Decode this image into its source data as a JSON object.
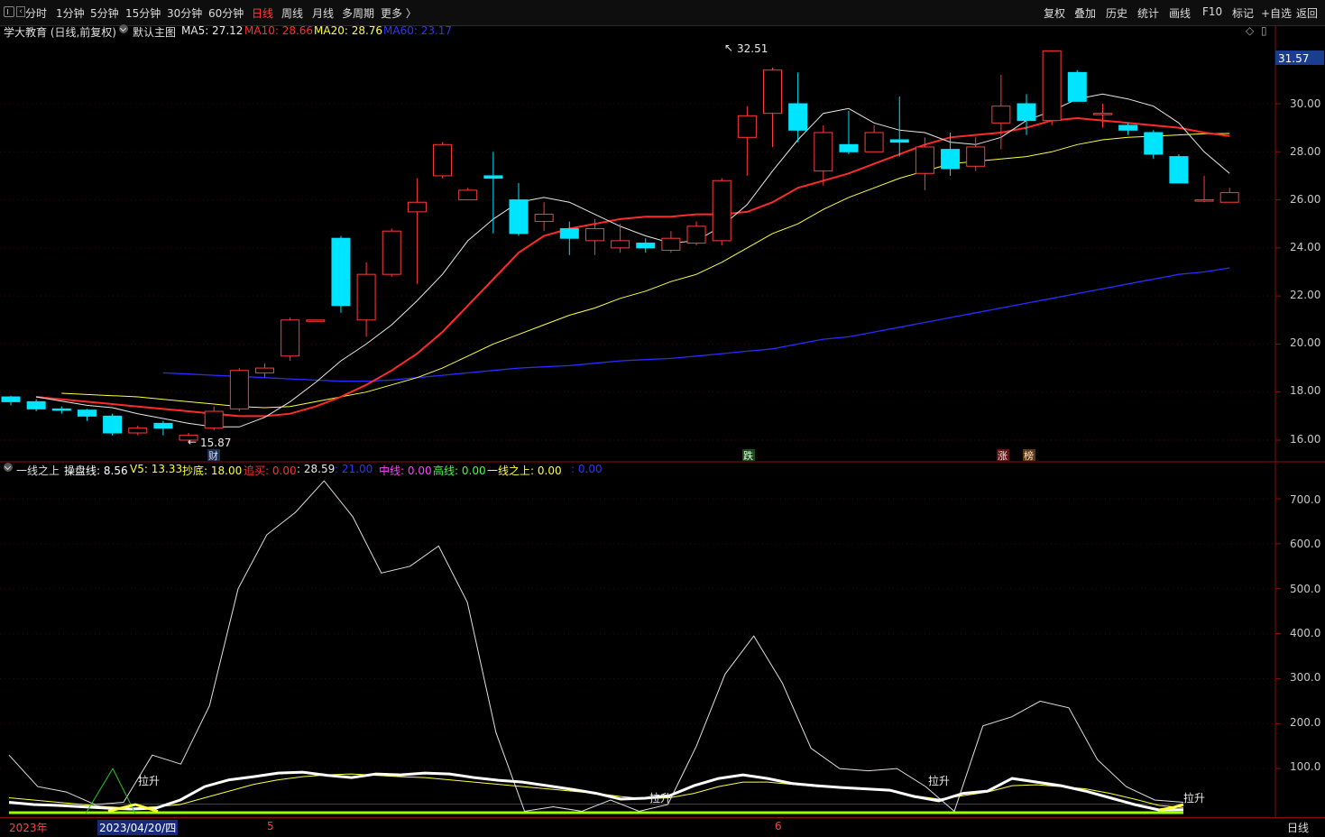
{
  "toolbar": {
    "left_items": [
      "分时",
      "1分钟",
      "5分钟",
      "15分钟",
      "30分钟",
      "60分钟",
      "日线",
      "周线",
      "月线",
      "多周期",
      "更多 〉"
    ],
    "active_index": 6,
    "right_items": [
      "复权",
      "叠加",
      "历史",
      "统计",
      "画线",
      "F10",
      "标记",
      "+自选",
      "返回"
    ]
  },
  "main_header": {
    "stock": "学大教育 (日线,前复权)",
    "indicator": "默认主图",
    "ma5": "MA5: 27.12",
    "ma10": "MA10: 28.66",
    "ma20": "MA20: 28.76",
    "ma60": "MA60: 23.17",
    "diamond": "◇",
    "box": "▯",
    "colors": {
      "ma5": "#e8e8e8",
      "ma10": "#ff3030",
      "ma20": "#ffff40",
      "ma60": "#3333ff"
    }
  },
  "sub_header": {
    "name": "一线之上",
    "items": [
      {
        "label": "操盘线:",
        "value": "8.56",
        "color": "#ffffff"
      },
      {
        "label": "V5:",
        "value": "13.33",
        "color": "#ffff40"
      },
      {
        "label": "抄底:",
        "value": "18.00",
        "color": "#ffff40"
      },
      {
        "label": "追买:",
        "value": "0.00",
        "color": "#ff3030"
      },
      {
        "label": ":",
        "value": "28.59",
        "color": "#e8e8e8"
      },
      {
        "label": ":",
        "value": "21.00",
        "color": "#3333ff"
      },
      {
        "label": "中线:",
        "value": "0.00",
        "color": "#ff40ff"
      },
      {
        "label": "高线:",
        "value": "0.00",
        "color": "#40ff40"
      },
      {
        "label": "一线之上:",
        "value": "0.00",
        "color": "#ffff40"
      },
      {
        "label": ":",
        "value": "0.00",
        "color": "#3333ff"
      }
    ]
  },
  "price_axis": {
    "labels": [
      "30.00",
      "28.00",
      "26.00",
      "24.00",
      "22.00",
      "20.00",
      "18.00",
      "16.00"
    ],
    "current": "31.57"
  },
  "sub_axis": {
    "labels": [
      "700.0",
      "600.0",
      "500.0",
      "400.0",
      "300.0",
      "200.0",
      "100.0"
    ]
  },
  "annotations": {
    "high": "32.51",
    "low": "15.87",
    "high_arrow": "↖",
    "low_arrow": "←"
  },
  "markers": [
    "财",
    "跌",
    "涨",
    "榜"
  ],
  "sub_annotations": [
    "拉升",
    "拉升",
    "拉升",
    "拉升"
  ],
  "bottom": {
    "year": "2023年",
    "date": "2023/04/20/四",
    "m5": "5",
    "m6": "6",
    "period": "日线"
  },
  "chart_data": {
    "type": "candlestick",
    "candles": [
      [
        17.8,
        17.6,
        17.85,
        17.45
      ],
      [
        17.6,
        17.3,
        17.7,
        17.2
      ],
      [
        17.3,
        17.25,
        17.4,
        17.1
      ],
      [
        17.25,
        17.0,
        17.3,
        16.8
      ],
      [
        17.0,
        16.3,
        17.1,
        16.2
      ],
      [
        16.3,
        16.5,
        16.6,
        16.2
      ],
      [
        16.7,
        16.5,
        16.8,
        16.2
      ],
      [
        16.0,
        16.2,
        16.3,
        15.87
      ],
      [
        16.5,
        17.2,
        17.4,
        16.4
      ],
      [
        17.3,
        18.9,
        19.0,
        17.2
      ],
      [
        18.8,
        19.0,
        19.2,
        18.6
      ],
      [
        19.5,
        21.0,
        21.1,
        19.3
      ],
      [
        21.0,
        21.0,
        21.0,
        21.0
      ],
      [
        24.4,
        21.6,
        24.5,
        21.3
      ],
      [
        21.0,
        22.9,
        23.4,
        20.3
      ],
      [
        22.9,
        24.7,
        24.8,
        22.8
      ],
      [
        25.5,
        25.9,
        26.9,
        22.5
      ],
      [
        27.0,
        28.3,
        28.4,
        26.9
      ],
      [
        26.0,
        26.4,
        26.5,
        26.0
      ],
      [
        27.0,
        26.9,
        28.0,
        24.6
      ],
      [
        26.0,
        24.6,
        26.7,
        24.5
      ],
      [
        25.1,
        25.4,
        25.9,
        24.7
      ],
      [
        24.8,
        24.4,
        25.1,
        23.7
      ],
      [
        24.3,
        24.8,
        25.2,
        23.7
      ],
      [
        24.0,
        24.3,
        25.0,
        23.8
      ],
      [
        24.2,
        24.0,
        24.4,
        23.8
      ],
      [
        23.9,
        24.4,
        24.7,
        23.8
      ],
      [
        24.2,
        24.9,
        25.1,
        24.1
      ],
      [
        24.3,
        26.8,
        26.9,
        24.1
      ],
      [
        28.6,
        29.5,
        29.9,
        27.0
      ],
      [
        29.6,
        31.4,
        31.5,
        28.2
      ],
      [
        30.0,
        28.9,
        31.3,
        28.4
      ],
      [
        27.2,
        28.8,
        29.1,
        26.6
      ],
      [
        28.3,
        28.0,
        29.7,
        27.9
      ],
      [
        28.0,
        28.8,
        29.1,
        28.1
      ],
      [
        28.5,
        28.4,
        30.3,
        27.8
      ],
      [
        27.1,
        28.2,
        28.6,
        26.4
      ],
      [
        28.1,
        27.3,
        28.8,
        27.0
      ],
      [
        27.4,
        28.2,
        28.6,
        27.2
      ],
      [
        29.2,
        29.9,
        31.2,
        28.1
      ],
      [
        30.0,
        29.3,
        30.4,
        28.7
      ],
      [
        29.3,
        32.2,
        32.2,
        29.1
      ],
      [
        31.3,
        30.1,
        31.4,
        30.1
      ],
      [
        29.6,
        29.6,
        30.0,
        29.0
      ],
      [
        29.1,
        28.9,
        29.2,
        28.7
      ],
      [
        28.8,
        27.9,
        28.9,
        27.7
      ],
      [
        27.8,
        26.7,
        27.9,
        26.7
      ],
      [
        26.0,
        26.0,
        27.0,
        25.9
      ],
      [
        25.9,
        26.3,
        26.5,
        25.9
      ]
    ],
    "ma5": [
      17.8,
      17.62,
      17.45,
      17.35,
      17.1,
      16.9,
      16.7,
      16.55,
      16.55,
      16.95,
      17.6,
      18.4,
      19.3,
      20.0,
      20.8,
      21.8,
      22.9,
      24.3,
      25.2,
      25.9,
      26.1,
      25.9,
      25.4,
      24.9,
      24.5,
      24.2,
      24.3,
      24.9,
      25.8,
      27.2,
      28.5,
      29.6,
      29.8,
      29.2,
      28.9,
      28.8,
      28.4,
      28.3,
      28.6,
      29.3,
      29.7,
      30.2,
      30.4,
      30.2,
      29.9,
      29.2,
      28.0,
      27.1
    ],
    "ma10": [
      17.8,
      17.7,
      17.6,
      17.5,
      17.4,
      17.3,
      17.2,
      17.1,
      17.0,
      17.0,
      17.1,
      17.4,
      17.8,
      18.3,
      18.9,
      19.6,
      20.5,
      21.6,
      22.7,
      23.8,
      24.5,
      24.8,
      25.0,
      25.2,
      25.3,
      25.3,
      25.4,
      25.4,
      25.5,
      25.9,
      26.5,
      26.8,
      27.1,
      27.5,
      27.9,
      28.3,
      28.6,
      28.7,
      28.8,
      29.0,
      29.3,
      29.4,
      29.3,
      29.2,
      29.1,
      29.0,
      28.8,
      28.66
    ],
    "ma20": [
      17.95,
      17.9,
      17.85,
      17.8,
      17.7,
      17.6,
      17.5,
      17.4,
      17.35,
      17.4,
      17.6,
      17.8,
      18.0,
      18.3,
      18.6,
      19.0,
      19.5,
      20.0,
      20.4,
      20.8,
      21.2,
      21.5,
      21.9,
      22.2,
      22.6,
      22.9,
      23.4,
      24.0,
      24.6,
      25.0,
      25.6,
      26.1,
      26.5,
      26.9,
      27.2,
      27.5,
      27.6,
      27.7,
      27.8,
      28.0,
      28.3,
      28.5,
      28.6,
      28.65,
      28.7,
      28.75,
      28.76
    ],
    "ma60": [
      18.8,
      18.75,
      18.7,
      18.65,
      18.6,
      18.55,
      18.5,
      18.45,
      18.45,
      18.5,
      18.6,
      18.7,
      18.8,
      18.9,
      19.0,
      19.05,
      19.1,
      19.2,
      19.3,
      19.35,
      19.4,
      19.5,
      19.6,
      19.7,
      19.8,
      20.0,
      20.2,
      20.3,
      20.5,
      20.7,
      20.9,
      21.1,
      21.3,
      21.5,
      21.7,
      21.9,
      22.1,
      22.3,
      22.5,
      22.7,
      22.9,
      23.0,
      23.17
    ],
    "sub_thin_white": [
      130,
      60,
      48,
      20,
      25,
      130,
      110,
      240,
      500,
      620,
      670,
      740,
      660,
      535,
      550,
      595,
      470,
      180,
      5,
      15,
      5,
      30,
      5,
      20,
      150,
      310,
      395,
      290,
      145,
      100,
      95,
      100,
      60,
      5,
      195,
      215,
      250,
      235,
      120,
      60,
      30,
      25
    ],
    "sub_thick_white": [
      25,
      20,
      18,
      15,
      12,
      10,
      12,
      30,
      60,
      75,
      82,
      90,
      92,
      85,
      80,
      88,
      86,
      90,
      88,
      80,
      74,
      70,
      62,
      54,
      45,
      32,
      34,
      40,
      62,
      78,
      86,
      78,
      67,
      62,
      58,
      55,
      52,
      38,
      28,
      45,
      50,
      78,
      70,
      62,
      50,
      35,
      20,
      8,
      8.56
    ],
    "sub_yellow": [
      35,
      30,
      25,
      20,
      15,
      12,
      15,
      20,
      35,
      50,
      65,
      75,
      82,
      86,
      88,
      85,
      82,
      80,
      75,
      70,
      65,
      60,
      55,
      50,
      45,
      38,
      33,
      35,
      45,
      60,
      70,
      70,
      65,
      60,
      58,
      55,
      50,
      40,
      32,
      40,
      48,
      62,
      64,
      60,
      55,
      45,
      32,
      18,
      13.33
    ],
    "sub_green_spike": [
      0,
      0,
      0,
      100,
      0,
      0
    ],
    "sub_blue": [
      21,
      21
    ]
  }
}
